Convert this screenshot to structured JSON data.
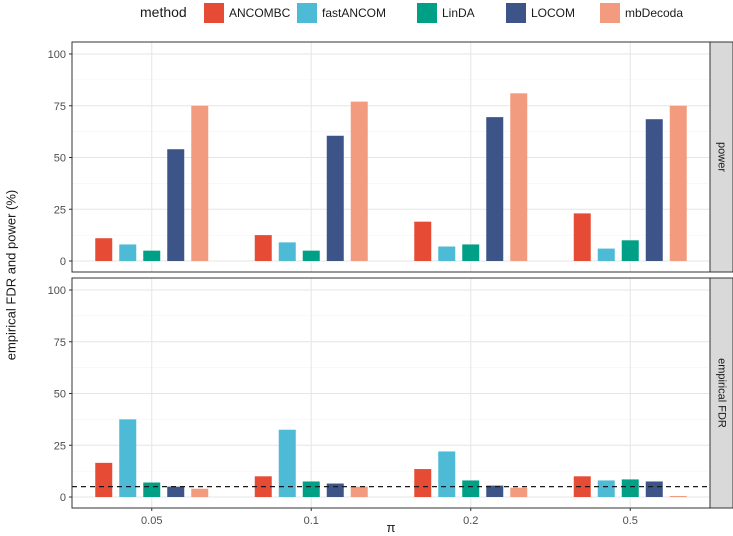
{
  "chart_data": {
    "type": "bar",
    "legend": {
      "title": "method",
      "position": "top",
      "entries": [
        {
          "name": "ANCOMBC",
          "color": "#E64B35"
        },
        {
          "name": "fastANCOM",
          "color": "#4DBBD5"
        },
        {
          "name": "LinDA",
          "color": "#00A087"
        },
        {
          "name": "LOCOM",
          "color": "#3C5488"
        },
        {
          "name": "mbDecoda",
          "color": "#F39B7F"
        }
      ]
    },
    "xlabel": "π",
    "ylabel": "empirical FDR and power (%)",
    "categories": [
      "0.05",
      "0.1",
      "0.2",
      "0.5"
    ],
    "ylim": [
      0,
      100
    ],
    "yticks": [
      "0",
      "25",
      "50",
      "75",
      "100"
    ],
    "grid": true,
    "panels": [
      {
        "strip_label": "power",
        "series": [
          {
            "name": "ANCOMBC",
            "values": [
              11,
              12.5,
              19,
              23
            ]
          },
          {
            "name": "fastANCOM",
            "values": [
              8,
              9,
              7,
              6
            ]
          },
          {
            "name": "LinDA",
            "values": [
              5,
              5,
              8,
              10
            ]
          },
          {
            "name": "LOCOM",
            "values": [
              54,
              60.5,
              69.5,
              68.5
            ]
          },
          {
            "name": "mbDecoda",
            "values": [
              75,
              77,
              81,
              75
            ]
          }
        ]
      },
      {
        "strip_label": "empirical FDR",
        "reference_line": 5,
        "series": [
          {
            "name": "ANCOMBC",
            "values": [
              16.5,
              10,
              13.5,
              10
            ]
          },
          {
            "name": "fastANCOM",
            "values": [
              37.5,
              32.5,
              22,
              8
            ]
          },
          {
            "name": "LinDA",
            "values": [
              7,
              7.5,
              8,
              8.5
            ]
          },
          {
            "name": "LOCOM",
            "values": [
              5,
              6.5,
              5.5,
              7.5
            ]
          },
          {
            "name": "mbDecoda",
            "values": [
              4,
              5,
              4.5,
              0.5
            ]
          }
        ]
      }
    ]
  }
}
